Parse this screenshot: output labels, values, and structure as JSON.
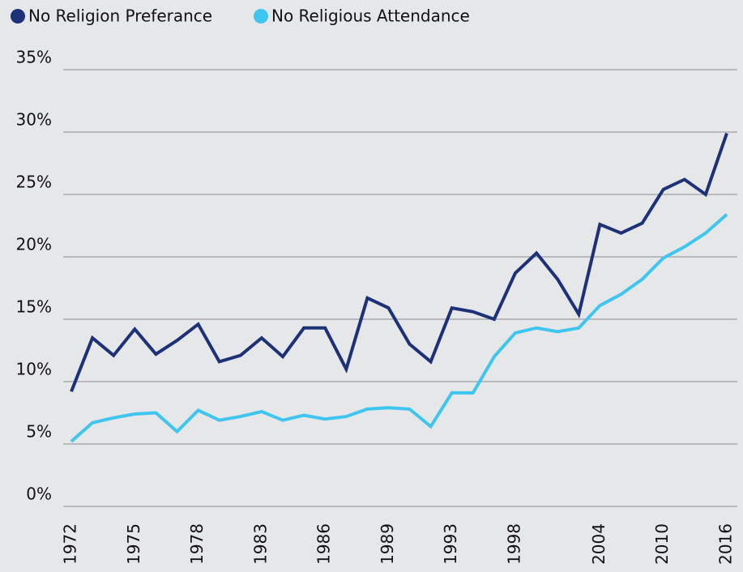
{
  "chart_data": {
    "type": "line",
    "categories": [
      "1972",
      null,
      null,
      "1975",
      null,
      null,
      "1978",
      null,
      null,
      "1983",
      null,
      null,
      "1986",
      null,
      null,
      "1989",
      null,
      null,
      "1993",
      null,
      null,
      "1998",
      null,
      null,
      null,
      "2004",
      null,
      null,
      "2010",
      null,
      null,
      "2016"
    ],
    "series": [
      {
        "name": "No Religion Preferance",
        "color": "#1d3178",
        "values": [
          9.2,
          13.5,
          12.1,
          14.2,
          12.2,
          13.3,
          14.6,
          11.6,
          12.1,
          13.5,
          12.0,
          14.3,
          14.3,
          11.0,
          16.7,
          15.9,
          13.0,
          11.6,
          15.9,
          15.6,
          15.0,
          18.7,
          20.3,
          18.2,
          15.4,
          22.6,
          21.9,
          22.7,
          25.4,
          26.2,
          25.0,
          29.9
        ]
      },
      {
        "name": "No Religious Attendance",
        "color": "#3ec6f0",
        "values": [
          5.2,
          6.7,
          7.1,
          7.4,
          7.5,
          6.0,
          7.7,
          6.9,
          7.2,
          7.6,
          6.9,
          7.3,
          7.0,
          7.2,
          7.8,
          7.9,
          7.8,
          6.4,
          9.1,
          9.1,
          12.0,
          13.9,
          14.3,
          14.0,
          14.3,
          16.1,
          17.0,
          18.2,
          19.9,
          20.8,
          21.9,
          23.4
        ]
      }
    ],
    "ylim": [
      0,
      35
    ],
    "yticks": [
      {
        "value": 0,
        "label": "0%"
      },
      {
        "value": 5,
        "label": "5%"
      },
      {
        "value": 10,
        "label": "10%"
      },
      {
        "value": 15,
        "label": "15%"
      },
      {
        "value": 20,
        "label": "20%"
      },
      {
        "value": 25,
        "label": "25%"
      },
      {
        "value": 30,
        "label": "30%"
      },
      {
        "value": 35,
        "label": "35%"
      }
    ],
    "grid": true,
    "legend": "top-left"
  }
}
